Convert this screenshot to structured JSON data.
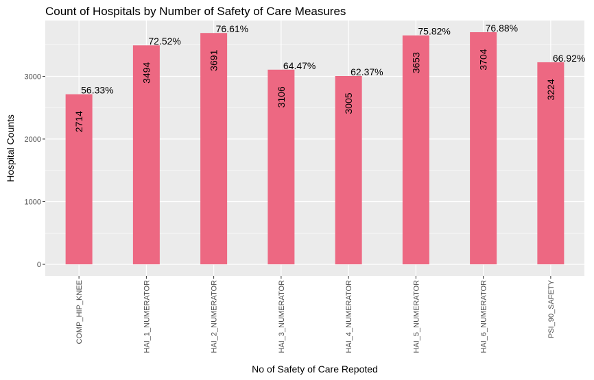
{
  "chart_data": {
    "type": "bar",
    "title": "Count of Hospitals by Number of Safety of Care Measures",
    "xlabel": "No of Safety of Care Repoted",
    "ylabel": "Hospital Counts",
    "categories": [
      "COMP_HIP_KNEE",
      "HAI_1_NUMERATOR",
      "HAI_2_NUMERATOR",
      "HAI_3_NUMERATOR",
      "HAI_4_NUMERATOR",
      "HAI_5_NUMERATOR",
      "HAI_6_NUMERATOR",
      "PSI_90_SAFETY"
    ],
    "values": [
      2714,
      3494,
      3691,
      3106,
      3005,
      3653,
      3704,
      3224
    ],
    "value_labels": [
      "2714",
      "3494",
      "3691",
      "3106",
      "3005",
      "3653",
      "3704",
      "3224"
    ],
    "percent_labels": [
      "56.33%",
      "72.52%",
      "76.61%",
      "64.47%",
      "62.37%",
      "75.82%",
      "76.88%",
      "66.92%"
    ],
    "yticks": [
      0,
      1000,
      2000,
      3000
    ],
    "ytick_labels": [
      "0",
      "1000",
      "2000",
      "3000"
    ],
    "ylim": [
      -185,
      3890
    ],
    "grid": true,
    "bar_color": "#ED6882",
    "panel_color": "#EBEBEB",
    "grid_color": "#FFFFFF"
  }
}
